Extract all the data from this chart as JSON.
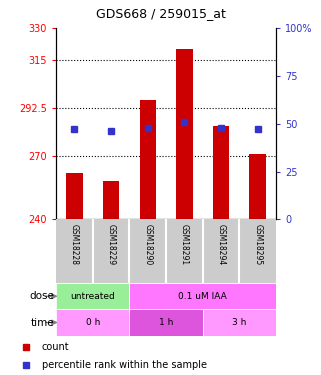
{
  "title": "GDS668 / 259015_at",
  "samples": [
    "GSM18228",
    "GSM18229",
    "GSM18290",
    "GSM18291",
    "GSM18294",
    "GSM18295"
  ],
  "bar_values": [
    262,
    258,
    296,
    320,
    284,
    271
  ],
  "percentile_values": [
    47,
    46,
    48,
    51,
    48,
    47
  ],
  "bar_color": "#cc0000",
  "percentile_color": "#3333cc",
  "ylim_left": [
    240,
    330
  ],
  "ylim_right": [
    0,
    100
  ],
  "yticks_left": [
    240,
    270,
    292.5,
    315,
    330
  ],
  "yticks_right": [
    0,
    25,
    50,
    75,
    100
  ],
  "ytick_labels_left": [
    "240",
    "270",
    "292.5",
    "315",
    "330"
  ],
  "ytick_labels_right": [
    "0",
    "25",
    "50",
    "75",
    "100%"
  ],
  "hlines": [
    270,
    292.5,
    315
  ],
  "dose_untreated_color": "#99ee99",
  "dose_iaa_color": "#ff77ff",
  "time_0h_color": "#ff99ff",
  "time_1h_color": "#dd55dd",
  "time_3h_color": "#ff99ff",
  "sample_bg_color": "#cccccc",
  "dose_row_label": "dose",
  "time_row_label": "time",
  "legend_count_color": "#cc0000",
  "legend_pct_color": "#3333cc",
  "legend_count_label": "count",
  "legend_pct_label": "percentile rank within the sample"
}
